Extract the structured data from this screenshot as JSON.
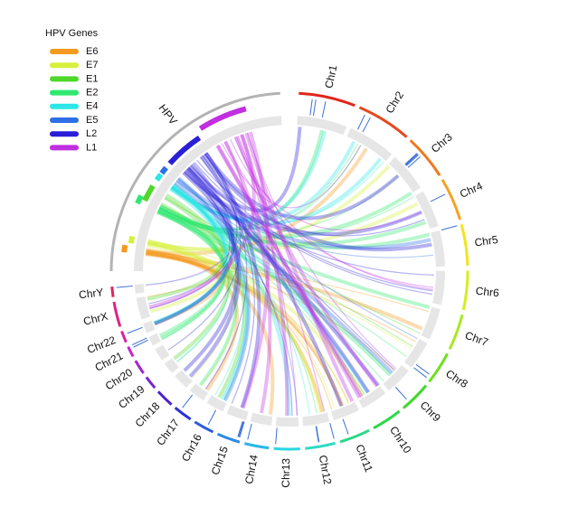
{
  "legend": {
    "title": "HPV Genes",
    "items": [
      {
        "label": "E6",
        "color": "#f39a1f"
      },
      {
        "label": "E7",
        "color": "#d7f03c"
      },
      {
        "label": "E1",
        "color": "#4fd82a"
      },
      {
        "label": "E2",
        "color": "#2fe870"
      },
      {
        "label": "E4",
        "color": "#2de6e6"
      },
      {
        "label": "E5",
        "color": "#2f6fe6"
      },
      {
        "label": "L2",
        "color": "#2a1fd6"
      },
      {
        "label": "L1",
        "color": "#c02fe0"
      }
    ]
  },
  "hpv": {
    "label": "HPV",
    "color": "#b3b3b3"
  },
  "chromosomes": [
    {
      "label": "Chr1",
      "color": "#e3241b"
    },
    {
      "label": "Chr2",
      "color": "#e8471b"
    },
    {
      "label": "Chr3",
      "color": "#f0781e"
    },
    {
      "label": "Chr4",
      "color": "#f4a421"
    },
    {
      "label": "Chr5",
      "color": "#f2e41f"
    },
    {
      "label": "Chr6",
      "color": "#d3ee1f"
    },
    {
      "label": "Chr7",
      "color": "#a8e81f"
    },
    {
      "label": "Chr8",
      "color": "#6fe01f"
    },
    {
      "label": "Chr9",
      "color": "#3ed82a"
    },
    {
      "label": "Chr10",
      "color": "#2bd84a"
    },
    {
      "label": "Chr11",
      "color": "#2bd887"
    },
    {
      "label": "Chr12",
      "color": "#2bdcc2"
    },
    {
      "label": "Chr13",
      "color": "#2bd6e6"
    },
    {
      "label": "Chr14",
      "color": "#2bb7e6"
    },
    {
      "label": "Chr15",
      "color": "#2b8be6"
    },
    {
      "label": "Chr16",
      "color": "#2b5ae0"
    },
    {
      "label": "Chr17",
      "color": "#2b33d6"
    },
    {
      "label": "Chr18",
      "color": "#4a23d0"
    },
    {
      "label": "Chr19",
      "color": "#7a23d0"
    },
    {
      "label": "Chr20",
      "color": "#a523d0"
    },
    {
      "label": "Chr21",
      "color": "#cc23cc"
    },
    {
      "label": "Chr22",
      "color": "#d823a8"
    },
    {
      "label": "ChrX",
      "color": "#de2385"
    },
    {
      "label": "ChrY",
      "color": "#e2235a"
    }
  ]
}
